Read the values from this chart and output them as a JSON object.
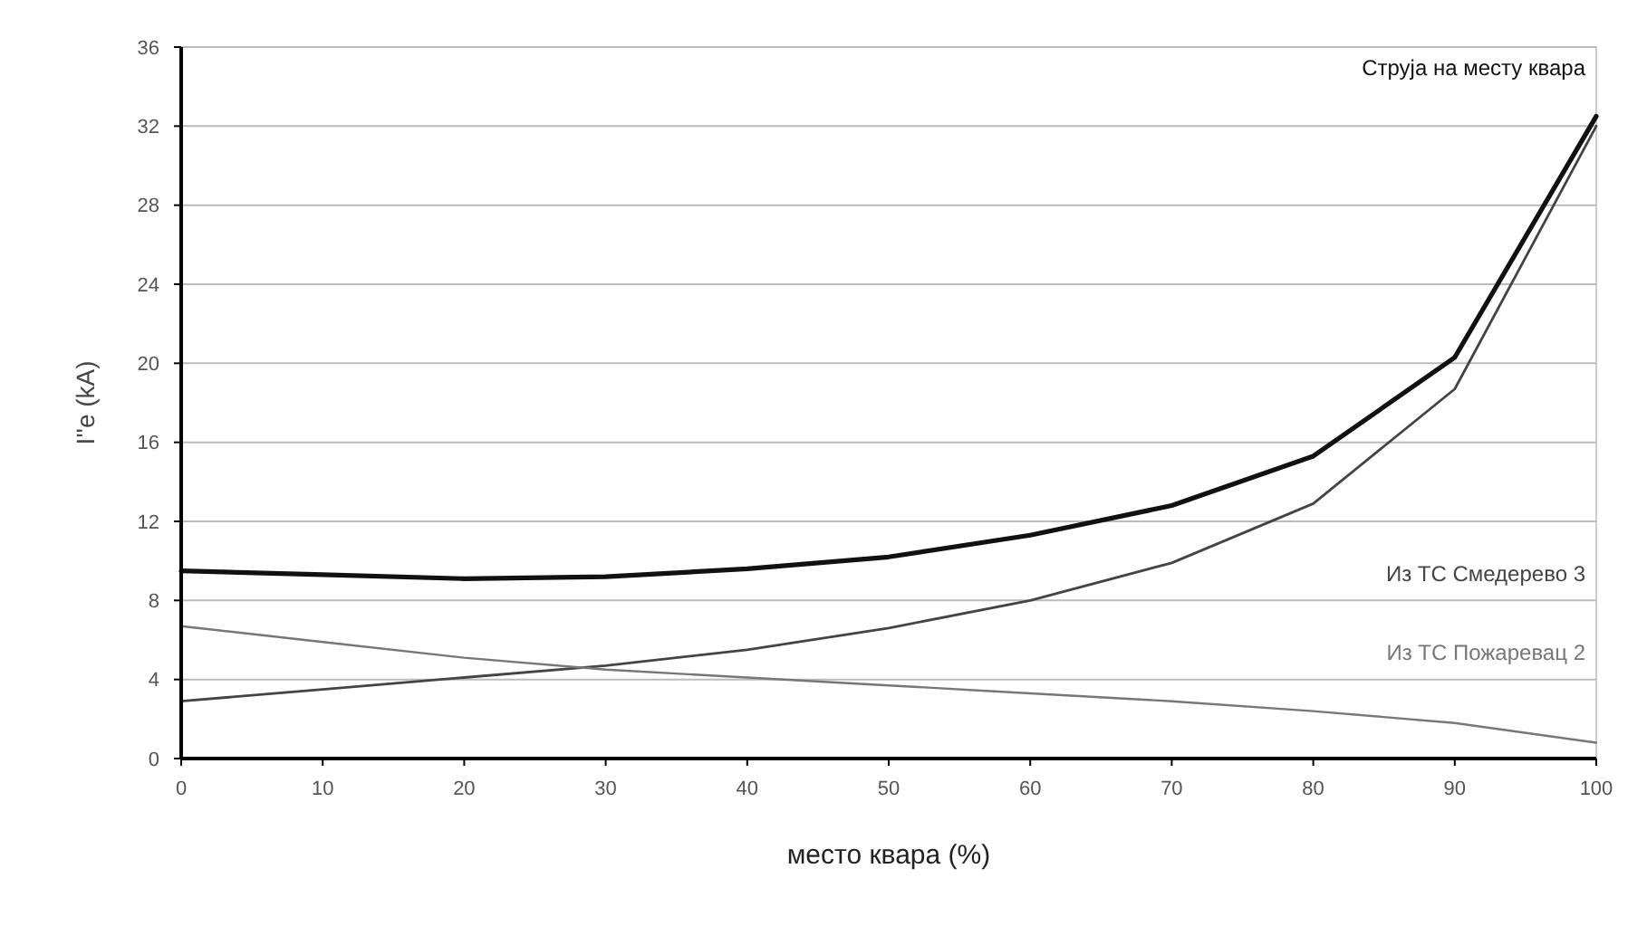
{
  "chart_data": {
    "type": "line",
    "xlabel": "место квара (%)",
    "ylabel": "I''e (kA)",
    "x": [
      0,
      10,
      20,
      30,
      40,
      50,
      60,
      70,
      80,
      90,
      100
    ],
    "xlim": [
      0,
      100
    ],
    "xticks": [
      0,
      10,
      20,
      30,
      40,
      50,
      60,
      70,
      80,
      90,
      100
    ],
    "ylim": [
      0,
      36
    ],
    "yticks": [
      0,
      4,
      8,
      12,
      16,
      20,
      24,
      28,
      32,
      36
    ],
    "grid": "y",
    "legend": false,
    "marker": "none",
    "series": [
      {
        "name": "Струја на месту квара",
        "color": "#111111",
        "values": [
          9.5,
          9.3,
          9.1,
          9.2,
          9.6,
          10.2,
          11.3,
          12.8,
          15.3,
          20.3,
          32.5
        ]
      },
      {
        "name": "Из ТС Смедерево 3",
        "color": "#444444",
        "values": [
          2.9,
          3.5,
          4.1,
          4.7,
          5.5,
          6.6,
          8.0,
          9.9,
          12.9,
          18.7,
          32.0
        ]
      },
      {
        "name": "Из ТС Пожаревац 2",
        "color": "#777777",
        "values": [
          6.7,
          5.9,
          5.1,
          4.5,
          4.1,
          3.7,
          3.3,
          2.9,
          2.4,
          1.8,
          0.8
        ]
      }
    ]
  }
}
